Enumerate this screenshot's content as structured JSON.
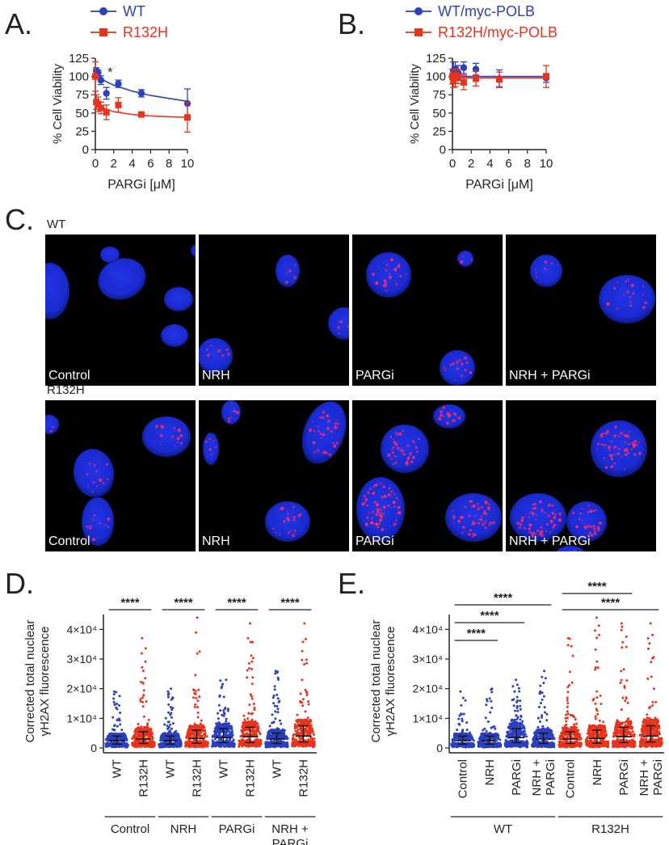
{
  "panels": {
    "A": "A.",
    "B": "B.",
    "C": "C.",
    "D": "D.",
    "E": "E."
  },
  "colors": {
    "wt": "#2b3fbf",
    "r132h": "#e8331d",
    "nucleus": "#1c2fd8",
    "foci": "#ff2a6a"
  },
  "chart_data": [
    {
      "id": "A",
      "type": "line",
      "xlabel": "PARGi [μM]",
      "ylabel": "% Cell Viability",
      "xlim": [
        0,
        10
      ],
      "ylim": [
        0,
        125
      ],
      "xticks": [
        "0",
        "2",
        "4",
        "6",
        "8",
        "10"
      ],
      "yticks": [
        "0",
        "25",
        "50",
        "75",
        "100",
        "125"
      ],
      "annotation": "*",
      "legend_position": "top",
      "series": [
        {
          "name": "WT",
          "color": "#2b3fbf",
          "marker": "circle",
          "x": [
            0,
            0.1,
            0.3,
            0.6,
            1.2,
            2.5,
            5,
            10
          ],
          "y": [
            100,
            108,
            105,
            95,
            77,
            90,
            77,
            63
          ],
          "err": [
            3,
            4,
            4,
            6,
            8,
            5,
            5,
            20
          ],
          "fit": [
            [
              0,
              105
            ],
            [
              1,
              94
            ],
            [
              2,
              88
            ],
            [
              4,
              80
            ],
            [
              6,
              74
            ],
            [
              8,
              70
            ],
            [
              10,
              66
            ]
          ]
        },
        {
          "name": "R132H",
          "color": "#e8331d",
          "marker": "square",
          "x": [
            0,
            0.1,
            0.3,
            0.6,
            1.2,
            2.5,
            5,
            10
          ],
          "y": [
            100,
            65,
            62,
            57,
            51,
            61,
            48,
            44
          ],
          "err": [
            20,
            10,
            10,
            8,
            10,
            10,
            3,
            20
          ],
          "fit": [
            [
              0,
              68
            ],
            [
              1,
              56
            ],
            [
              2,
              52
            ],
            [
              4,
              48
            ],
            [
              6,
              46
            ],
            [
              8,
              45
            ],
            [
              10,
              44
            ]
          ]
        }
      ]
    },
    {
      "id": "B",
      "type": "line",
      "xlabel": "PARGi [μM]",
      "ylabel": "% Cell Viability",
      "xlim": [
        0,
        10
      ],
      "ylim": [
        0,
        125
      ],
      "xticks": [
        "0",
        "2",
        "4",
        "6",
        "8",
        "10"
      ],
      "yticks": [
        "0",
        "25",
        "50",
        "75",
        "100",
        "125"
      ],
      "legend_position": "top",
      "series": [
        {
          "name": "WT/myc-POLB",
          "color": "#2b3fbf",
          "marker": "circle",
          "x": [
            0,
            0.1,
            0.3,
            0.6,
            1.2,
            2.5,
            5,
            10
          ],
          "y": [
            100,
            108,
            110,
            105,
            112,
            110,
            97,
            98
          ],
          "err": [
            10,
            12,
            10,
            10,
            8,
            8,
            12,
            6
          ],
          "fit": [
            [
              0,
              100
            ],
            [
              10,
              100
            ]
          ]
        },
        {
          "name": "R132H/myc-POLB",
          "color": "#e8331d",
          "marker": "square",
          "x": [
            0,
            0.1,
            0.3,
            0.6,
            1.2,
            2.5,
            5,
            10
          ],
          "y": [
            100,
            95,
            98,
            100,
            92,
            97,
            96,
            100
          ],
          "err": [
            10,
            10,
            12,
            10,
            10,
            10,
            10,
            15
          ],
          "fit": [
            [
              0,
              98
            ],
            [
              10,
              98
            ]
          ]
        }
      ]
    },
    {
      "id": "D",
      "type": "scatter",
      "ylabel_line1": "Corrected total nuclear",
      "ylabel_line2": "γH2AX fluorescence",
      "ylim": [
        0,
        45000
      ],
      "yticks": [
        {
          "value": 0,
          "label": "0"
        },
        {
          "value": 10000,
          "label": "1×10⁴"
        },
        {
          "value": 20000,
          "label": "2×10⁴"
        },
        {
          "value": 30000,
          "label": "3×10⁴"
        },
        {
          "value": 40000,
          "label": "4×10⁴"
        }
      ],
      "categories": [
        "WT",
        "R132H",
        "WT",
        "R132H",
        "WT",
        "R132H",
        "WT",
        "R132H"
      ],
      "groups": [
        {
          "label_lines": [
            "Control"
          ],
          "span": [
            0,
            1
          ]
        },
        {
          "label_lines": [
            "NRH"
          ],
          "span": [
            2,
            3
          ]
        },
        {
          "label_lines": [
            "PARGi"
          ],
          "span": [
            4,
            5
          ]
        },
        {
          "label_lines": [
            "NRH +",
            "PARGi"
          ],
          "span": [
            6,
            7
          ]
        }
      ],
      "series": [
        {
          "category_index": 0,
          "genotype": "WT",
          "median": 2500,
          "q1": 1300,
          "q3": 4000,
          "max": 19000
        },
        {
          "category_index": 1,
          "genotype": "R132H",
          "median": 3000,
          "q1": 1500,
          "q3": 5500,
          "max": 37000
        },
        {
          "category_index": 2,
          "genotype": "WT",
          "median": 2500,
          "q1": 1300,
          "q3": 4000,
          "max": 20000
        },
        {
          "category_index": 3,
          "genotype": "R132H",
          "median": 3200,
          "q1": 1600,
          "q3": 6000,
          "max": 44000
        },
        {
          "category_index": 4,
          "genotype": "WT",
          "median": 3500,
          "q1": 1800,
          "q3": 6500,
          "max": 23000
        },
        {
          "category_index": 5,
          "genotype": "R132H",
          "median": 3800,
          "q1": 1800,
          "q3": 7000,
          "max": 42000
        },
        {
          "category_index": 6,
          "genotype": "WT",
          "median": 3000,
          "q1": 1500,
          "q3": 5000,
          "max": 26000
        },
        {
          "category_index": 7,
          "genotype": "R132H",
          "median": 4000,
          "q1": 2000,
          "q3": 7500,
          "max": 42000
        }
      ],
      "significance": [
        {
          "from": 0,
          "to": 1,
          "label": "****"
        },
        {
          "from": 2,
          "to": 3,
          "label": "****"
        },
        {
          "from": 4,
          "to": 5,
          "label": "****"
        },
        {
          "from": 6,
          "to": 7,
          "label": "****"
        }
      ]
    },
    {
      "id": "E",
      "type": "scatter",
      "ylabel_line1": "Corrected total nuclear",
      "ylabel_line2": "γH2AX fluorescence",
      "ylim": [
        0,
        45000
      ],
      "yticks": [
        {
          "value": 0,
          "label": "0"
        },
        {
          "value": 10000,
          "label": "1×10⁴"
        },
        {
          "value": 20000,
          "label": "2×10⁴"
        },
        {
          "value": 30000,
          "label": "3×10⁴"
        },
        {
          "value": 40000,
          "label": "4×10⁴"
        }
      ],
      "categories": [
        {
          "lines": [
            "Control"
          ]
        },
        {
          "lines": [
            "NRH"
          ]
        },
        {
          "lines": [
            "PARGi"
          ]
        },
        {
          "lines": [
            "NRH +",
            "PARGi"
          ]
        },
        {
          "lines": [
            "Control"
          ]
        },
        {
          "lines": [
            "NRH"
          ]
        },
        {
          "lines": [
            "PARGi"
          ]
        },
        {
          "lines": [
            "NRH +",
            "PARGi"
          ]
        }
      ],
      "groups": [
        {
          "label_lines": [
            "WT"
          ],
          "span": [
            0,
            3
          ]
        },
        {
          "label_lines": [
            "R132H"
          ],
          "span": [
            4,
            7
          ]
        }
      ],
      "series": [
        {
          "category_index": 0,
          "genotype": "WT",
          "median": 2500,
          "q1": 1300,
          "q3": 4000,
          "max": 19000
        },
        {
          "category_index": 1,
          "genotype": "WT",
          "median": 2500,
          "q1": 1300,
          "q3": 4000,
          "max": 20000
        },
        {
          "category_index": 2,
          "genotype": "WT",
          "median": 3500,
          "q1": 1800,
          "q3": 6500,
          "max": 23000
        },
        {
          "category_index": 3,
          "genotype": "WT",
          "median": 3000,
          "q1": 1500,
          "q3": 5000,
          "max": 26000
        },
        {
          "category_index": 4,
          "genotype": "R132H",
          "median": 3000,
          "q1": 1500,
          "q3": 5500,
          "max": 37000
        },
        {
          "category_index": 5,
          "genotype": "R132H",
          "median": 3200,
          "q1": 1600,
          "q3": 6000,
          "max": 44000
        },
        {
          "category_index": 6,
          "genotype": "R132H",
          "median": 3800,
          "q1": 1800,
          "q3": 7000,
          "max": 42000
        },
        {
          "category_index": 7,
          "genotype": "R132H",
          "median": 4000,
          "q1": 2000,
          "q3": 7500,
          "max": 42000
        }
      ],
      "significance": [
        {
          "from": 0,
          "to": 1,
          "label": "****"
        },
        {
          "from": 0,
          "to": 2,
          "label": "****"
        },
        {
          "from": 0,
          "to": 3,
          "label": "****"
        },
        {
          "from": 4,
          "to": 6,
          "label": "****"
        },
        {
          "from": 4,
          "to": 7,
          "label": "****"
        }
      ]
    }
  ],
  "microscopy": {
    "rows": [
      {
        "label": "WT",
        "panels": [
          {
            "label": "Control",
            "foci": 0
          },
          {
            "label": "NRH",
            "foci": 1
          },
          {
            "label": "PARGi",
            "foci": 2
          },
          {
            "label": "NRH + PARGi",
            "foci": 1
          }
        ]
      },
      {
        "label": "R132H",
        "panels": [
          {
            "label": "Control",
            "foci": 1
          },
          {
            "label": "NRH",
            "foci": 2
          },
          {
            "label": "PARGi",
            "foci": 3
          },
          {
            "label": "NRH + PARGi",
            "foci": 3
          }
        ]
      }
    ]
  }
}
